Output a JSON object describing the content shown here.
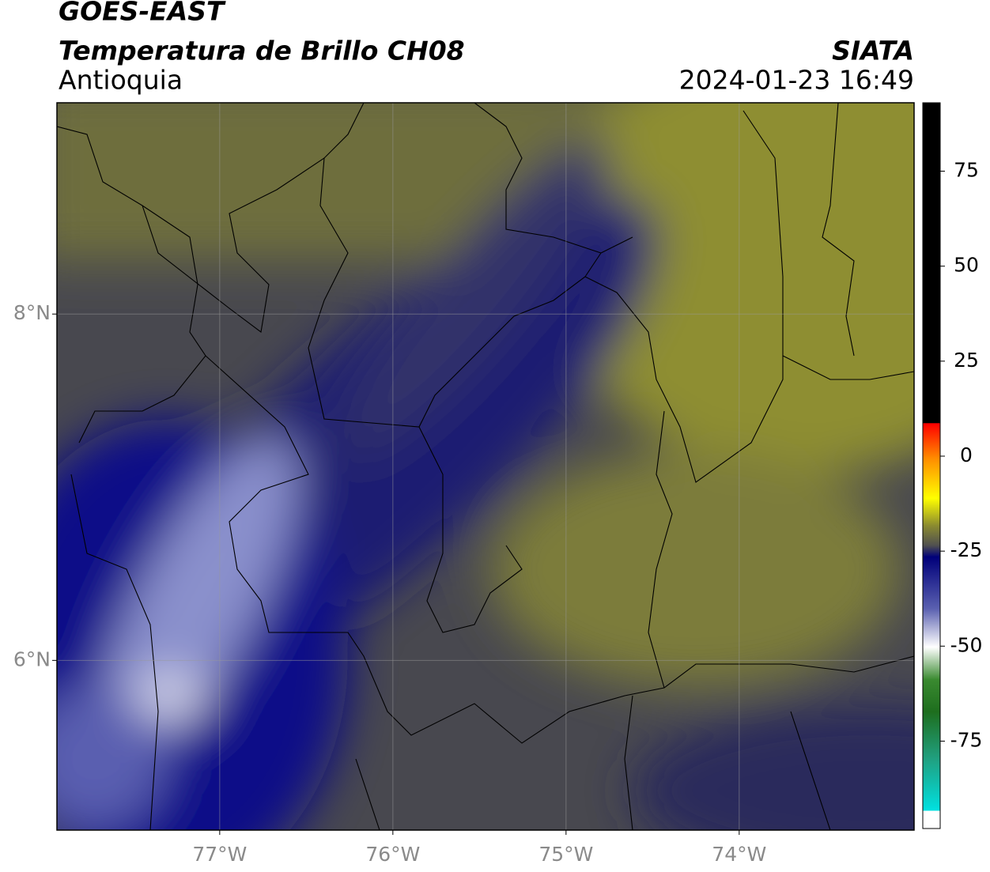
{
  "header": {
    "title": "GOES-EAST",
    "subtitle": "Temperatura de Brillo CH08",
    "brand": "SIATA",
    "region": "Antioquia",
    "timestamp": "2024-01-23 16:49"
  },
  "map": {
    "xlim": [
      -77.94,
      -72.99
    ],
    "ylim": [
      5.02,
      9.22
    ],
    "xticks": [
      {
        "value": -77,
        "label": "77°W"
      },
      {
        "value": -76,
        "label": "76°W"
      },
      {
        "value": -75,
        "label": "75°W"
      },
      {
        "value": -74,
        "label": "74°W"
      }
    ],
    "yticks": [
      {
        "value": 8,
        "label": "8°N"
      },
      {
        "value": 6,
        "label": "6°N"
      }
    ],
    "grid": true
  },
  "colorbar": {
    "lim": [
      -98,
      93
    ],
    "ticks": [
      75,
      50,
      25,
      0,
      -25,
      -50,
      -75
    ]
  }
}
